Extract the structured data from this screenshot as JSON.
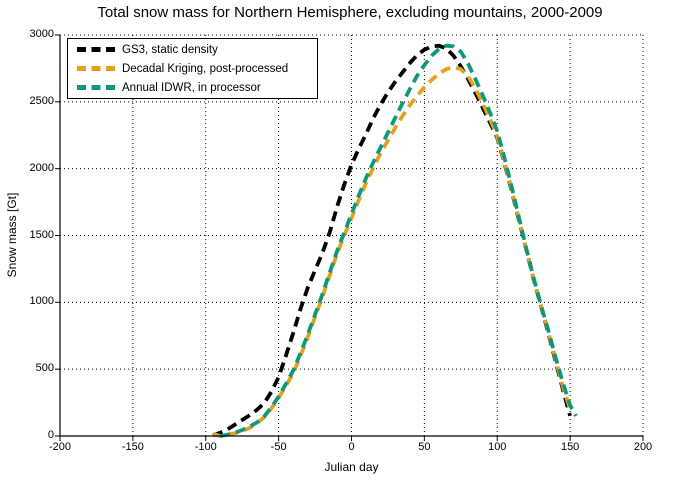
{
  "figure": {
    "background": "#FFFFFF",
    "axis_color": "#000000"
  },
  "chart_data": {
    "type": "line",
    "title": "Total snow mass for Northern Hemisphere, excluding mountains, 2000-2009",
    "xlabel": "Julian day",
    "ylabel": "Snow mass [Gt]",
    "xlim": [
      -200,
      200
    ],
    "ylim": [
      0,
      3000
    ],
    "xticks": [
      -200,
      -150,
      -100,
      -50,
      0,
      50,
      100,
      150,
      200
    ],
    "yticks": [
      0,
      500,
      1000,
      1500,
      2000,
      2500,
      3000
    ],
    "grid": true,
    "grid_style": "dotted",
    "line_style": "dashed",
    "legend_position": "top-left",
    "series": [
      {
        "name": "GS3, static density",
        "color": "#000000",
        "x": [
          -95,
          -90,
          -85,
          -80,
          -75,
          -70,
          -65,
          -60,
          -55,
          -50,
          -45,
          -40,
          -35,
          -30,
          -25,
          -20,
          -15,
          -10,
          -5,
          0,
          5,
          10,
          15,
          20,
          25,
          30,
          35,
          40,
          45,
          50,
          55,
          60,
          65,
          70,
          75,
          80,
          85,
          90,
          95,
          100,
          105,
          110,
          115,
          120,
          125,
          130,
          135,
          140,
          145,
          150
        ],
        "y": [
          5,
          25,
          50,
          85,
          120,
          155,
          195,
          245,
          330,
          440,
          600,
          770,
          950,
          1110,
          1240,
          1370,
          1520,
          1710,
          1880,
          2030,
          2150,
          2260,
          2380,
          2480,
          2570,
          2650,
          2720,
          2790,
          2850,
          2890,
          2915,
          2920,
          2900,
          2845,
          2765,
          2670,
          2565,
          2455,
          2345,
          2230,
          2040,
          1830,
          1610,
          1390,
          1170,
          970,
          770,
          560,
          350,
          150
        ]
      },
      {
        "name": "Decadal Kriging, post-processed",
        "color": "#E5A11C",
        "x": [
          -95,
          -90,
          -85,
          -80,
          -75,
          -70,
          -65,
          -60,
          -55,
          -50,
          -45,
          -40,
          -35,
          -30,
          -25,
          -20,
          -15,
          -10,
          -5,
          0,
          5,
          10,
          15,
          20,
          25,
          30,
          35,
          40,
          45,
          50,
          55,
          60,
          65,
          70,
          75,
          80,
          85,
          90,
          95,
          100,
          105,
          110,
          115,
          120,
          125,
          130,
          135,
          140,
          145,
          150
        ],
        "y": [
          15,
          0,
          10,
          20,
          40,
          60,
          95,
          140,
          205,
          285,
          375,
          470,
          600,
          740,
          890,
          1040,
          1200,
          1360,
          1500,
          1630,
          1765,
          1895,
          2010,
          2115,
          2210,
          2305,
          2395,
          2475,
          2545,
          2610,
          2665,
          2710,
          2745,
          2760,
          2745,
          2690,
          2600,
          2490,
          2370,
          2240,
          2050,
          1840,
          1620,
          1395,
          1175,
          975,
          780,
          575,
          370,
          200
        ]
      },
      {
        "name": "Annual IDWR, in processor",
        "color": "#0F9878",
        "x": [
          -90,
          -85,
          -80,
          -75,
          -70,
          -65,
          -60,
          -55,
          -50,
          -45,
          -40,
          -35,
          -30,
          -25,
          -20,
          -15,
          -10,
          -5,
          0,
          5,
          10,
          15,
          20,
          25,
          30,
          35,
          40,
          45,
          50,
          55,
          60,
          65,
          70,
          75,
          80,
          85,
          90,
          95,
          100,
          105,
          110,
          115,
          120,
          125,
          130,
          135,
          140,
          145,
          150,
          154
        ],
        "y": [
          0,
          10,
          25,
          45,
          70,
          100,
          145,
          215,
          295,
          390,
          490,
          620,
          760,
          910,
          1060,
          1220,
          1380,
          1520,
          1660,
          1800,
          1930,
          2050,
          2160,
          2270,
          2380,
          2490,
          2595,
          2695,
          2775,
          2845,
          2895,
          2920,
          2915,
          2875,
          2785,
          2670,
          2550,
          2420,
          2280,
          2080,
          1860,
          1630,
          1400,
          1180,
          980,
          790,
          590,
          400,
          230,
          150
        ]
      }
    ]
  }
}
